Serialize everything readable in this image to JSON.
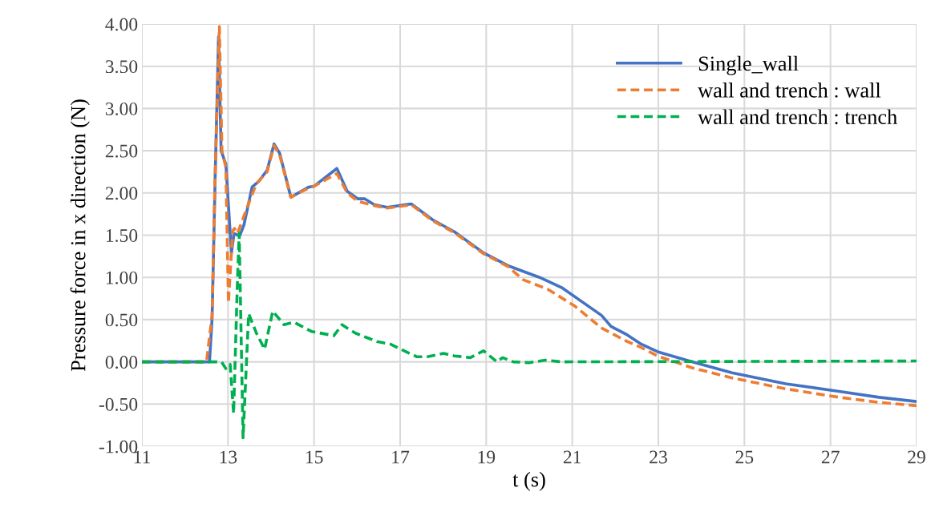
{
  "chart_data": {
    "type": "line",
    "xlabel": "t (s)",
    "ylabel": "Pressure force in x direction (N)",
    "xlim": [
      11,
      29
    ],
    "xticks": [
      11,
      13,
      15,
      17,
      19,
      21,
      23,
      25,
      27,
      29
    ],
    "ylim": [
      -1.0,
      4.0
    ],
    "yticks": [
      {
        "value": -1.0,
        "label": "-1.00"
      },
      {
        "value": -0.5,
        "label": "-0.50"
      },
      {
        "value": 0,
        "label": "0.00"
      },
      {
        "value": 0.5,
        "label": "0.50"
      },
      {
        "value": 1.0,
        "label": "1.00"
      },
      {
        "value": 1.5,
        "label": "1.50"
      },
      {
        "value": 2.0,
        "label": "2.00"
      },
      {
        "value": 2.5,
        "label": "2.50"
      },
      {
        "value": 3.0,
        "label": "3.00"
      },
      {
        "value": 3.5,
        "label": "3.50"
      },
      {
        "value": 4.0,
        "label": "4.00"
      }
    ],
    "grid": true,
    "legend": "top right",
    "marker": "none",
    "series": [
      {
        "name": "Single_wall",
        "color": "#4472c4",
        "line_style": "solid",
        "x": [
          11,
          12.57,
          12.63,
          12.7,
          12.78,
          12.84,
          12.95,
          13.08,
          13.14,
          13.27,
          13.37,
          13.56,
          13.72,
          13.91,
          14.07,
          14.2,
          14.46,
          14.88,
          15.0,
          15.53,
          15.77,
          16.02,
          16.18,
          16.4,
          16.7,
          17.26,
          17.76,
          18.26,
          18.94,
          19.5,
          20.24,
          20.75,
          21.68,
          21.9,
          22.24,
          22.6,
          22.98,
          23.78,
          24.71,
          25.96,
          27.2,
          28.13,
          29
        ],
        "values": [
          0,
          0,
          0.51,
          2.14,
          3.85,
          2.5,
          2.34,
          1.29,
          1.52,
          1.49,
          1.62,
          2.07,
          2.14,
          2.27,
          2.58,
          2.47,
          1.95,
          2.07,
          2.08,
          2.29,
          2.02,
          1.93,
          1.93,
          1.86,
          1.83,
          1.87,
          1.68,
          1.54,
          1.29,
          1.14,
          1.0,
          0.88,
          0.55,
          0.42,
          0.33,
          0.21,
          0.12,
          0.0,
          -0.13,
          -0.26,
          -0.35,
          -0.42,
          -0.47
        ]
      },
      {
        "name": "wall and trench : wall",
        "color": "#ed7d31",
        "line_style": "dashed",
        "x": [
          11,
          12.5,
          12.63,
          12.7,
          12.8,
          12.86,
          12.95,
          13.01,
          13.11,
          13.15,
          13.22,
          13.46,
          13.66,
          13.91,
          14.07,
          14.2,
          14.46,
          14.88,
          15.0,
          15.53,
          15.77,
          16.02,
          16.4,
          16.7,
          17.26,
          17.76,
          18.26,
          18.94,
          19.5,
          19.87,
          20.43,
          21.06,
          21.68,
          22.24,
          22.6,
          22.98,
          23.78,
          24.71,
          25.96,
          27.2,
          28.13,
          29
        ],
        "values": [
          0,
          0,
          0.55,
          2.2,
          3.97,
          2.5,
          2.3,
          0.7,
          1.55,
          1.58,
          1.52,
          1.85,
          2.11,
          2.25,
          2.56,
          2.45,
          1.95,
          2.06,
          2.08,
          2.23,
          2.0,
          1.9,
          1.85,
          1.82,
          1.86,
          1.67,
          1.53,
          1.28,
          1.13,
          0.97,
          0.86,
          0.66,
          0.4,
          0.25,
          0.17,
          0.07,
          -0.07,
          -0.19,
          -0.32,
          -0.42,
          -0.48,
          -0.52
        ]
      },
      {
        "name": "wall and trench : trench",
        "color": "#00b050",
        "line_style": "dashed",
        "x": [
          11,
          12.85,
          12.95,
          13.05,
          13.13,
          13.22,
          13.26,
          13.35,
          13.48,
          13.66,
          13.85,
          14.04,
          14.3,
          14.53,
          14.94,
          15.46,
          15.65,
          15.77,
          15.96,
          16.21,
          16.46,
          16.77,
          17.01,
          17.39,
          17.63,
          18.01,
          18.26,
          18.63,
          18.94,
          19.25,
          19.38,
          19.63,
          20.0,
          20.37,
          20.75,
          29
        ],
        "values": [
          0,
          0,
          -0.08,
          -0.03,
          -0.61,
          0.96,
          1.52,
          -0.9,
          0.57,
          0.34,
          0.15,
          0.6,
          0.44,
          0.47,
          0.36,
          0.31,
          0.44,
          0.4,
          0.34,
          0.29,
          0.24,
          0.21,
          0.15,
          0.06,
          0.06,
          0.1,
          0.07,
          0.05,
          0.13,
          0,
          0.05,
          0,
          -0.01,
          0.02,
          0,
          0.01
        ]
      }
    ]
  }
}
